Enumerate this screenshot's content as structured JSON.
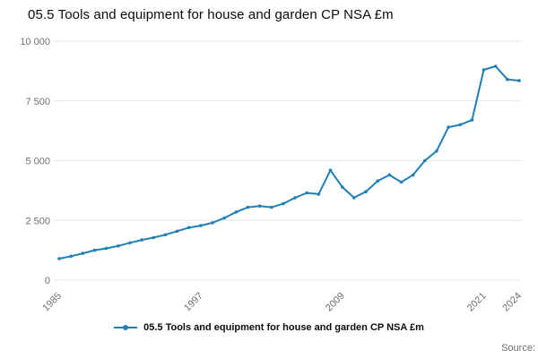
{
  "title": "05.5 Tools and equipment for house and garden CP NSA £m",
  "source_label": "Source:",
  "legend": {
    "label": "05.5 Tools and equipment for house and garden CP NSA £m"
  },
  "colors": {
    "line": "#1f80b8",
    "grid": "#e6e6e6",
    "axis_text": "#707071",
    "title_text": "#0b0c0c"
  },
  "chart_data": {
    "type": "line",
    "title": "05.5 Tools and equipment for house and garden CP NSA £m",
    "xlabel": "",
    "ylabel": "",
    "ylim": [
      0,
      10000
    ],
    "grid": true,
    "legend_position": "bottom",
    "x": [
      1985,
      1986,
      1987,
      1988,
      1989,
      1990,
      1991,
      1992,
      1993,
      1994,
      1995,
      1996,
      1997,
      1998,
      1999,
      2000,
      2001,
      2002,
      2003,
      2004,
      2005,
      2006,
      2007,
      2008,
      2009,
      2010,
      2011,
      2012,
      2013,
      2014,
      2015,
      2016,
      2017,
      2018,
      2019,
      2020,
      2021,
      2022,
      2023,
      2024
    ],
    "series": [
      {
        "name": "05.5 Tools and equipment for house and garden CP NSA £m",
        "values": [
          900,
          1000,
          1120,
          1250,
          1330,
          1430,
          1560,
          1680,
          1780,
          1900,
          2050,
          2200,
          2280,
          2400,
          2600,
          2850,
          3050,
          3100,
          3050,
          3200,
          3450,
          3650,
          3600,
          4600,
          3900,
          3450,
          3700,
          4150,
          4400,
          4100,
          4400,
          5000,
          5400,
          6400,
          6500,
          6700,
          8800,
          8950,
          8400,
          8350
        ]
      }
    ],
    "yticks": [
      {
        "value": 0,
        "label": "0"
      },
      {
        "value": 2500,
        "label": "2 500"
      },
      {
        "value": 5000,
        "label": "5 000"
      },
      {
        "value": 7500,
        "label": "7 500"
      },
      {
        "value": 10000,
        "label": "10 000"
      }
    ],
    "xtick_labels": [
      "1985",
      "1997",
      "2009",
      "2021",
      "2024"
    ]
  }
}
